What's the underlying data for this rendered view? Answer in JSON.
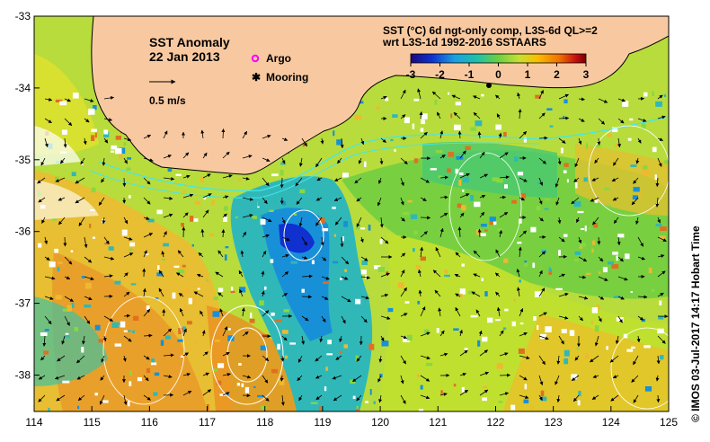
{
  "map": {
    "title": "SST Anomaly",
    "date": "22 Jan 2013",
    "scale_label": "0.5 m/s",
    "legend": {
      "argo_label": "Argo",
      "mooring_label": "Mooring",
      "argo_color": "#ff00ff",
      "mooring_color": "#000000"
    },
    "header": {
      "line1": "SST (°C) 6d ngt-only comp, L3S-6d QL>=2",
      "line2": "wrt L3S-1d 1992-2016 SSTAARS"
    },
    "colorbar": {
      "ticks": [
        "-3",
        "-2",
        "-1",
        "0",
        "1",
        "2",
        "3"
      ],
      "colors": [
        "#1a0a7a",
        "#1030d0",
        "#1aa0e0",
        "#20c0a8",
        "#6cd040",
        "#c8e030",
        "#f8c000",
        "#f07000",
        "#c81010",
        "#7a0000"
      ]
    },
    "x_ticks": [
      "114",
      "115",
      "116",
      "117",
      "118",
      "119",
      "120",
      "121",
      "122",
      "123",
      "124",
      "125"
    ],
    "y_ticks": [
      "-33",
      "-34",
      "-35",
      "-36",
      "-37",
      "-38"
    ],
    "land_color": "#f8c9a0",
    "sidebar": "©  IMOS 03-Jul-2017 14:17 Hobart Time"
  }
}
